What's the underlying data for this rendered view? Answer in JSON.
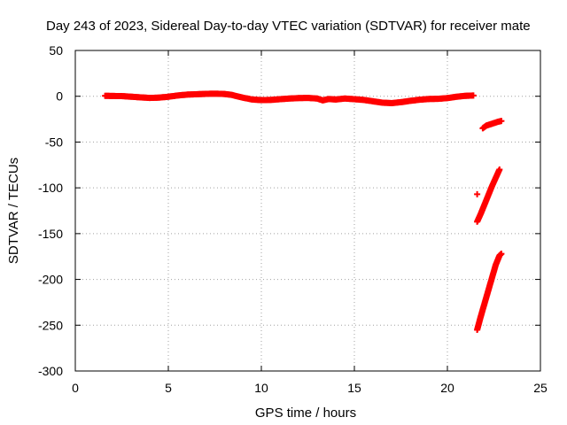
{
  "chart_data": {
    "type": "scatter",
    "title": "Day 243 of 2023, Sidereal Day-to-day VTEC variation (SDTVAR) for receiver mate",
    "xlabel": "GPS time / hours",
    "ylabel": "SDTVAR / TECUs",
    "xlim": [
      0,
      25
    ],
    "ylim": [
      -300,
      50
    ],
    "xticks": [
      0,
      5,
      10,
      15,
      20,
      25
    ],
    "yticks": [
      50,
      0,
      -50,
      -100,
      -150,
      -200,
      -250,
      -300
    ],
    "xtick_labels": [
      "0",
      "5",
      "10",
      "15",
      "20",
      "25"
    ],
    "ytick_labels": [
      "50",
      "0",
      "-50",
      "-100",
      "-150",
      "-200",
      "-250",
      "-300"
    ],
    "grid": true,
    "series": [
      {
        "name": "SDTVAR",
        "color": "#ff0000",
        "marker": "plus",
        "points": [
          [
            1.6,
            0.5
          ],
          [
            2.0,
            0.3
          ],
          [
            2.5,
            0.2
          ],
          [
            3.0,
            -0.5
          ],
          [
            3.5,
            -1.2
          ],
          [
            4.0,
            -1.8
          ],
          [
            4.5,
            -1.5
          ],
          [
            5.0,
            -0.5
          ],
          [
            5.5,
            0.8
          ],
          [
            6.0,
            1.8
          ],
          [
            6.5,
            2.2
          ],
          [
            7.0,
            2.6
          ],
          [
            7.5,
            2.8
          ],
          [
            8.0,
            2.5
          ],
          [
            8.4,
            1.5
          ],
          [
            8.7,
            0.0
          ],
          [
            9.0,
            -1.5
          ],
          [
            9.5,
            -3.5
          ],
          [
            10.0,
            -4.2
          ],
          [
            10.5,
            -4.0
          ],
          [
            11.0,
            -3.2
          ],
          [
            11.5,
            -2.5
          ],
          [
            12.0,
            -2.0
          ],
          [
            12.5,
            -1.8
          ],
          [
            13.0,
            -2.5
          ],
          [
            13.3,
            -4.5
          ],
          [
            13.6,
            -3.0
          ],
          [
            14.0,
            -3.5
          ],
          [
            14.5,
            -2.5
          ],
          [
            15.0,
            -3.2
          ],
          [
            15.5,
            -4.0
          ],
          [
            16.0,
            -5.5
          ],
          [
            16.5,
            -7.0
          ],
          [
            17.0,
            -7.5
          ],
          [
            17.5,
            -6.5
          ],
          [
            18.0,
            -5.0
          ],
          [
            18.5,
            -3.8
          ],
          [
            19.0,
            -3.0
          ],
          [
            19.5,
            -2.8
          ],
          [
            20.0,
            -2.0
          ],
          [
            20.5,
            -0.5
          ],
          [
            21.0,
            0.5
          ],
          [
            21.4,
            0.8
          ],
          [
            21.9,
            -35
          ],
          [
            22.1,
            -32
          ],
          [
            22.4,
            -30
          ],
          [
            22.7,
            -28
          ],
          [
            22.9,
            -27
          ],
          [
            21.6,
            -107
          ],
          [
            21.6,
            -137
          ],
          [
            21.8,
            -128
          ],
          [
            22.0,
            -118
          ],
          [
            22.2,
            -108
          ],
          [
            22.4,
            -98
          ],
          [
            22.6,
            -89
          ],
          [
            22.8,
            -80
          ],
          [
            21.6,
            -255
          ],
          [
            21.8,
            -240
          ],
          [
            22.0,
            -226
          ],
          [
            22.2,
            -212
          ],
          [
            22.4,
            -198
          ],
          [
            22.6,
            -184
          ],
          [
            22.8,
            -174
          ],
          [
            22.9,
            -172
          ]
        ]
      }
    ]
  }
}
